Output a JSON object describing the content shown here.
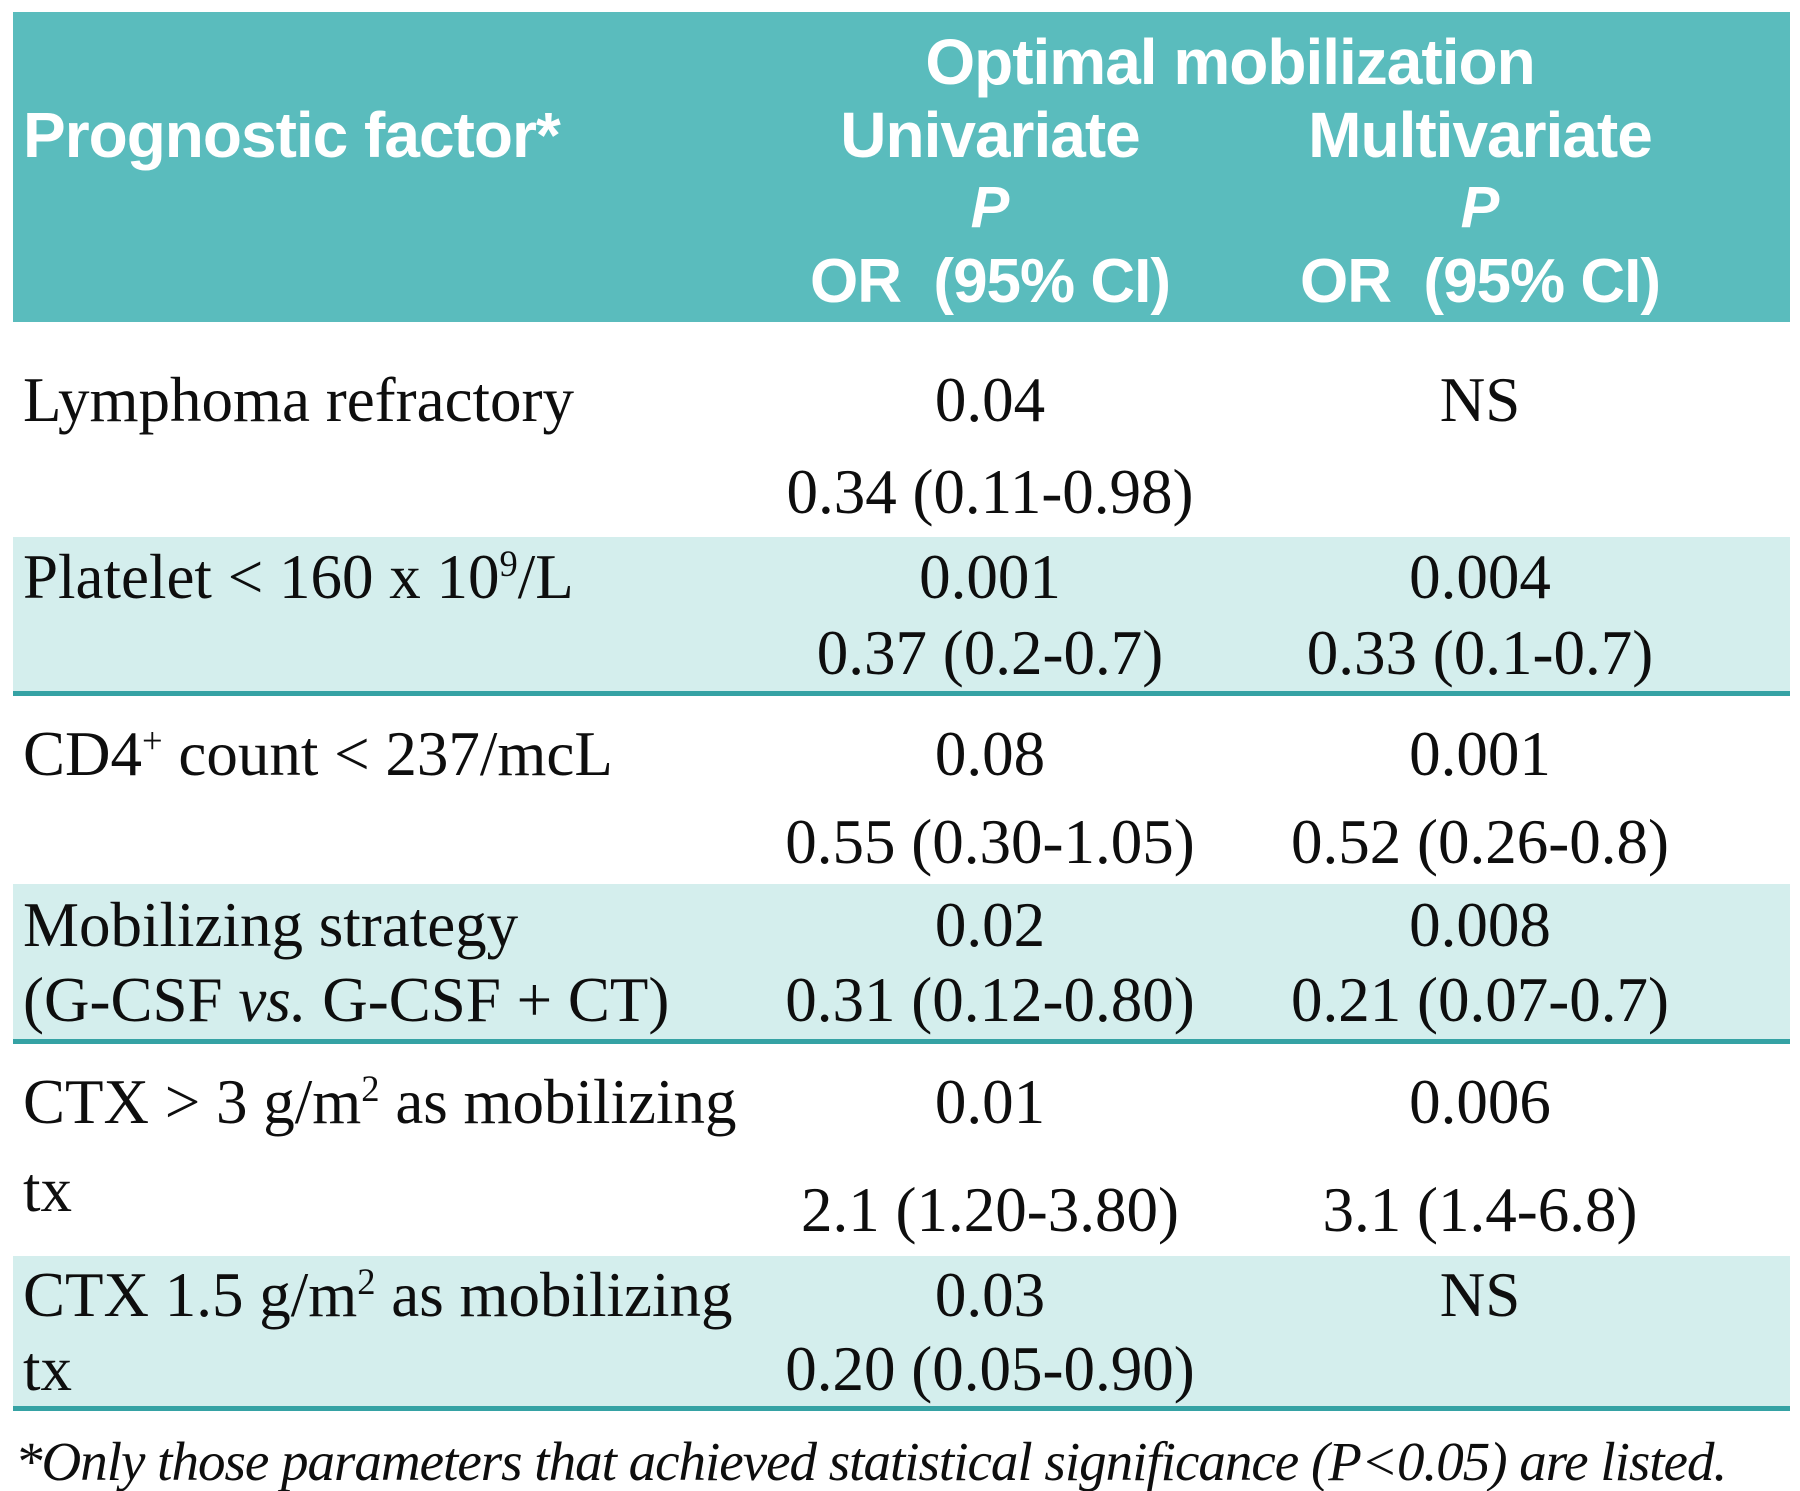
{
  "colors": {
    "header_bg": "#5abcbd",
    "shaded_row_bg": "#d4eeed",
    "separator": "#35a2a4",
    "header_text": "#ffffff",
    "body_text": "#0e0e0e"
  },
  "table": {
    "header": {
      "factor_col": "Prognostic factor*",
      "span_title": "Optimal mobilization",
      "univariate": {
        "name": "Univariate",
        "p": "P",
        "or": "OR  (95% CI)"
      },
      "multivariate": {
        "name": "Multivariate",
        "p": "P",
        "or": "OR  (95% CI)"
      }
    },
    "rows": [
      {
        "factor_pre": "Lymphoma refractory",
        "uni_p": "0.04",
        "uni_or": "0.34 (0.11-0.98)",
        "multi_p": "NS",
        "multi_or": ""
      },
      {
        "factor_pre": "Platelet < 160 x 10",
        "factor_sup": "9",
        "factor_post": "/L",
        "uni_p": "0.001",
        "uni_or": "0.37 (0.2-0.7)",
        "multi_p": "0.004",
        "multi_or": "0.33 (0.1-0.7)"
      },
      {
        "factor_pre": "CD4",
        "factor_sup": "+",
        "factor_post": " count < 237/mcL",
        "uni_p": "0.08",
        "uni_or": "0.55 (0.30-1.05)",
        "multi_p": "0.001",
        "multi_or": "0.52 (0.26-0.8)"
      },
      {
        "factor_line1": "Mobilizing strategy",
        "factor_line2_pre": "(G-CSF ",
        "factor_line2_vs": "vs.",
        "factor_line2_post": " G-CSF + CT)",
        "uni_p": "0.02",
        "uni_or": "0.31 (0.12-0.80)",
        "multi_p": "0.008",
        "multi_or": "0.21 (0.07-0.7)"
      },
      {
        "factor_pre": "CTX > 3 g/m",
        "factor_sup": "2",
        "factor_post": " as mobilizing tx",
        "uni_p": "0.01",
        "uni_or": "2.1 (1.20-3.80)",
        "multi_p": "0.006",
        "multi_or": "3.1 (1.4-6.8)"
      },
      {
        "factor_pre": "CTX 1.5 g/m",
        "factor_sup": "2",
        "factor_post": " as mobilizing tx",
        "uni_p": "0.03",
        "uni_or": "0.20 (0.05-0.90)",
        "multi_p": "NS",
        "multi_or": ""
      }
    ],
    "footnote": "*Only those parameters that achieved statistical significance (P<0.05) are listed."
  }
}
